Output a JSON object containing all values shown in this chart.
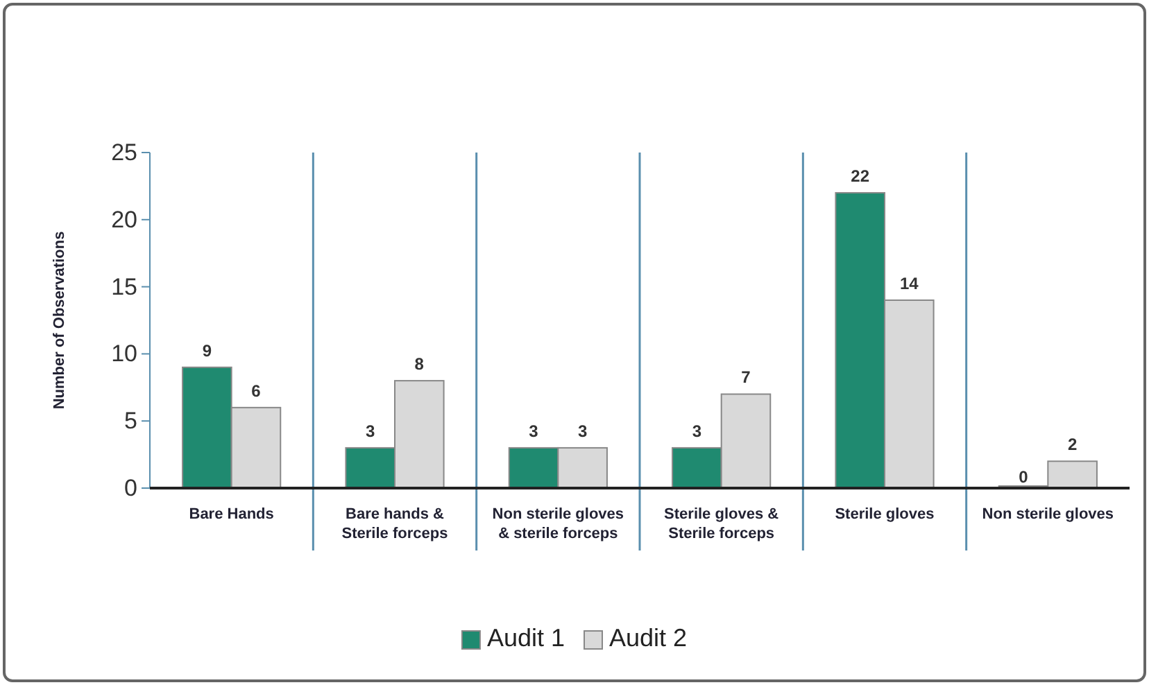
{
  "chart_data": {
    "type": "bar",
    "ylabel": "Number of Observations",
    "categories": [
      "Bare Hands",
      "Bare hands & Sterile forceps",
      "Non sterile gloves & sterile forceps",
      "Sterile gloves & Sterile forceps",
      "Sterile gloves",
      "Non sterile gloves"
    ],
    "series": [
      {
        "name": "Audit 1",
        "color": "#1f8a70",
        "values": [
          9,
          3,
          3,
          3,
          22,
          0
        ]
      },
      {
        "name": "Audit 2",
        "color": "#d9d9d9",
        "values": [
          6,
          8,
          3,
          7,
          14,
          2
        ]
      }
    ],
    "ylim": [
      0,
      25
    ],
    "yticks": [
      0,
      5,
      10,
      15,
      20,
      25
    ],
    "grid": "x",
    "data_labels": true,
    "legend": "bottom"
  }
}
